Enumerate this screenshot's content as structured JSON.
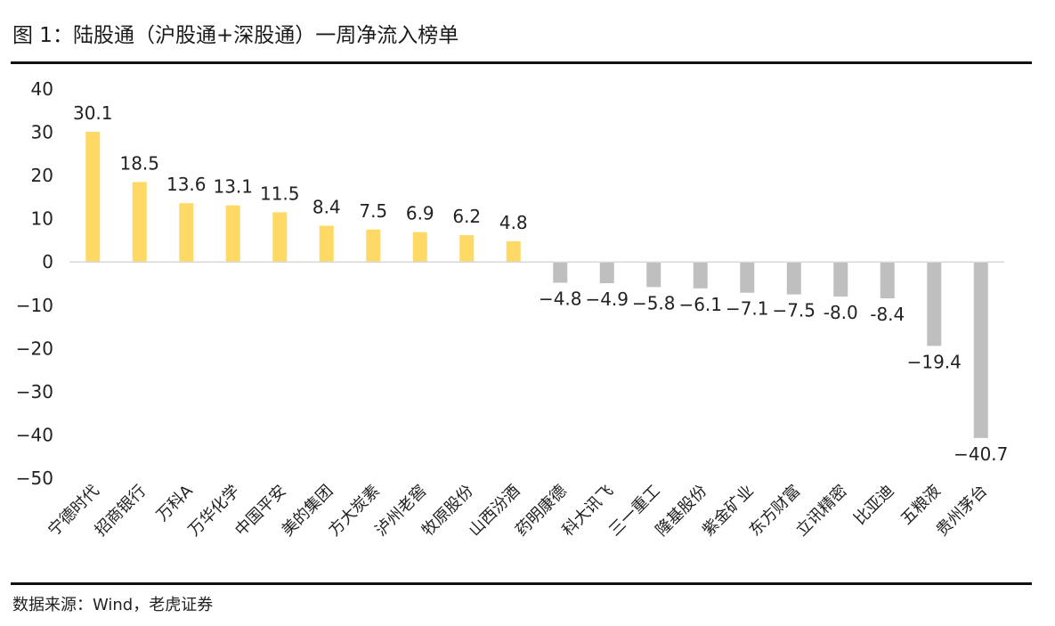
{
  "title": "图 1：陆股通（沪股通+深股通）一周净流入榜单",
  "source": "数据来源：Wind，老虎证券",
  "colors": {
    "positive": "#FFD966",
    "negative": "#BFBFBF",
    "axis": "#D9D9D9"
  },
  "chart_data": {
    "type": "bar",
    "categories": [
      "宁德时代",
      "招商银行",
      "万科A",
      "万华化学",
      "中国平安",
      "美的集团",
      "方大炭素",
      "泸州老窖",
      "牧原股份",
      "山西汾酒",
      "药明康德",
      "科大讯飞",
      "三一重工",
      "隆基股份",
      "紫金矿业",
      "东方财富",
      "立讯精密",
      "比亚迪",
      "五粮液",
      "贵州茅台"
    ],
    "values": [
      30.1,
      18.5,
      13.6,
      13.1,
      11.5,
      8.4,
      7.5,
      6.9,
      6.2,
      4.8,
      -4.8,
      -4.9,
      -5.8,
      -6.1,
      -7.1,
      -7.5,
      -8.0,
      -8.4,
      -19.4,
      -40.7
    ],
    "value_labels": [
      "30.1",
      "18.5",
      "13.6",
      "13.1",
      "11.5",
      "8.4",
      "7.5",
      "6.9",
      "6.2",
      "4.8",
      "−4.8",
      "−4.9",
      "−5.8",
      "−6.1",
      "−7.1",
      "−7.5",
      "-8.0",
      "-8.4",
      "−19.4",
      "−40.7"
    ],
    "yticks": [
      40,
      30,
      20,
      10,
      0,
      -10,
      -20,
      -30,
      -40,
      -50
    ],
    "ytick_labels": [
      "40",
      "30",
      "20",
      "10",
      "0",
      "−10",
      "−20",
      "−30",
      "−40",
      "−50"
    ],
    "ylim": [
      -50,
      40
    ],
    "grid": false,
    "legend": "none"
  }
}
